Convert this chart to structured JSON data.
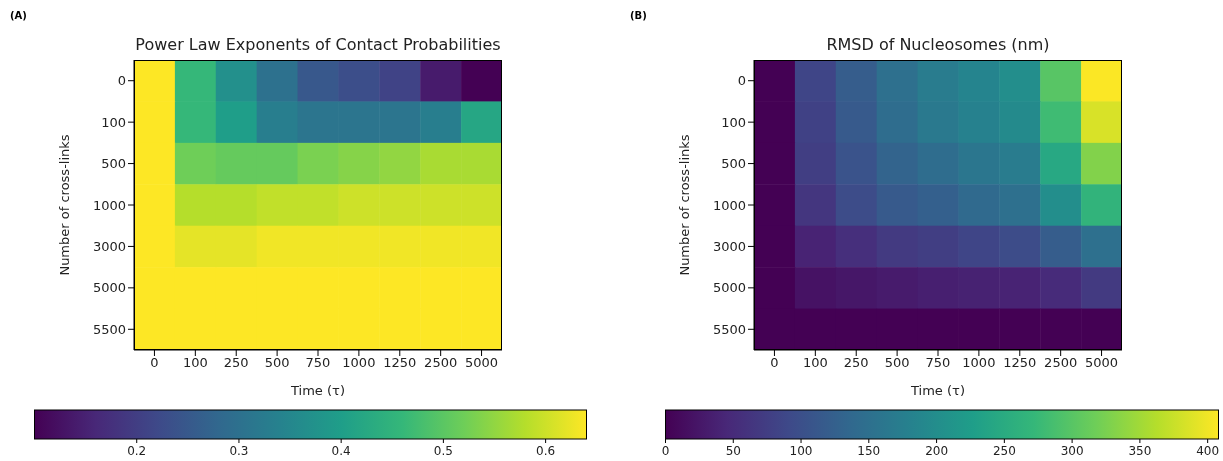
{
  "chart_data": [
    {
      "type": "heatmap",
      "title": "Power Law Exponents of Contact Probabilities",
      "annotations": [
        "(A)"
      ],
      "xlabel": "Time (τ)",
      "ylabel": "Number of cross-links",
      "categories": [
        "0",
        "100",
        "250",
        "500",
        "750",
        "1000",
        "1250",
        "2500",
        "5000"
      ],
      "y_categories": [
        "0",
        "100",
        "500",
        "1000",
        "3000",
        "5000",
        "5500"
      ],
      "cells": [
        [
          0.64,
          0.46,
          0.37,
          0.3,
          0.25,
          0.23,
          0.21,
          0.14,
          0.1
        ],
        [
          0.64,
          0.46,
          0.4,
          0.33,
          0.31,
          0.31,
          0.31,
          0.33,
          0.42
        ],
        [
          0.64,
          0.52,
          0.51,
          0.51,
          0.53,
          0.54,
          0.55,
          0.57,
          0.57
        ],
        [
          0.64,
          0.58,
          0.58,
          0.59,
          0.59,
          0.6,
          0.6,
          0.6,
          0.6
        ],
        [
          0.64,
          0.62,
          0.62,
          0.63,
          0.63,
          0.63,
          0.63,
          0.63,
          0.63
        ],
        [
          0.64,
          0.64,
          0.64,
          0.64,
          0.64,
          0.64,
          0.64,
          0.64,
          0.64
        ],
        [
          0.64,
          0.64,
          0.64,
          0.64,
          0.64,
          0.64,
          0.64,
          0.64,
          0.64
        ]
      ],
      "clim": [
        0.1,
        0.64
      ],
      "cticks": [
        0.2,
        0.3,
        0.4,
        0.5,
        0.6
      ]
    },
    {
      "type": "heatmap",
      "title": "RMSD of Nucleosomes (nm)",
      "annotations": [
        "(B)"
      ],
      "xlabel": "Time (τ)",
      "ylabel": "Number of cross-links",
      "categories": [
        "0",
        "100",
        "250",
        "500",
        "750",
        "1000",
        "1250",
        "2500",
        "5000"
      ],
      "y_categories": [
        "0",
        "100",
        "500",
        "1000",
        "3000",
        "5000",
        "5500"
      ],
      "cells": [
        [
          0,
          85,
          120,
          150,
          170,
          185,
          200,
          300,
          407
        ],
        [
          0,
          80,
          115,
          145,
          165,
          180,
          195,
          280,
          385
        ],
        [
          0,
          75,
          105,
          130,
          145,
          160,
          170,
          245,
          330
        ],
        [
          0,
          65,
          95,
          115,
          125,
          140,
          150,
          200,
          265
        ],
        [
          0,
          40,
          55,
          70,
          75,
          85,
          95,
          120,
          150
        ],
        [
          0,
          20,
          25,
          30,
          35,
          38,
          40,
          50,
          70
        ],
        [
          0,
          0,
          0,
          0,
          0,
          0,
          0,
          0,
          0
        ]
      ],
      "clim": [
        0,
        408
      ],
      "cticks": [
        0,
        50,
        100,
        150,
        200,
        250,
        300,
        350,
        400
      ]
    }
  ]
}
